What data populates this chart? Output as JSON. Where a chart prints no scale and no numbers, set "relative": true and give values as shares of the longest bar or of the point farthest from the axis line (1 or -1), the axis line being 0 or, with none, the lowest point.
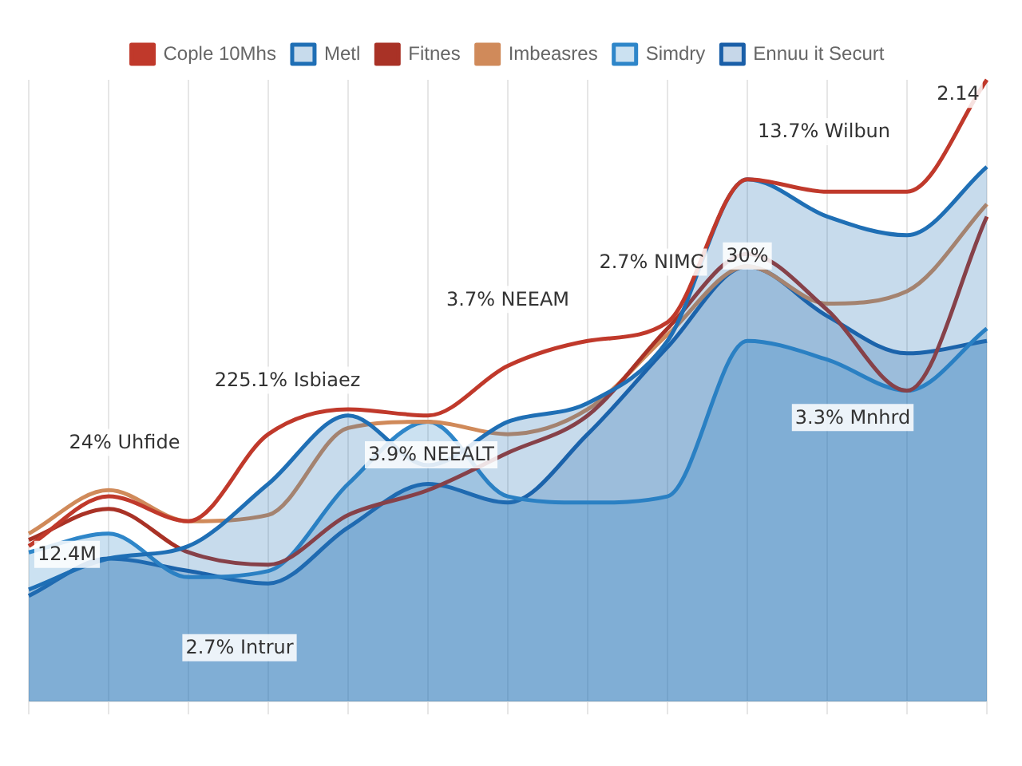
{
  "chart_data": {
    "type": "area",
    "relative": true,
    "grid": "x",
    "legend": "top",
    "marker": "none",
    "line_style": "solid",
    "categories": [
      null,
      null,
      null,
      null,
      null,
      null,
      null,
      null,
      null,
      null,
      null,
      null,
      null
    ],
    "annotations": [
      "225.1% Isbiaez",
      "3.7% NEEAM",
      "2.7% NIMC",
      "13.7% Wilbun",
      "2.14",
      "12.4M",
      "30%",
      "3.3% Mnhrd",
      "24% Uhfide",
      "3.9% NEEALT",
      "2.7% Intrur"
    ],
    "series": [
      {
        "name": "Cople 10Mhs",
        "color": "#c0392b",
        "type": "line",
        "values": [
          0.25,
          0.33,
          0.29,
          0.43,
          0.47,
          0.46,
          0.54,
          0.58,
          0.61,
          0.84,
          0.82,
          0.82,
          1
        ]
      },
      {
        "name": "Metl",
        "color": "#1f6fb5",
        "type": "area",
        "values": [
          0.18,
          0.23,
          0.25,
          0.35,
          0.46,
          0.38,
          0.45,
          0.48,
          0.58,
          0.84,
          0.78,
          0.75,
          0.86
        ]
      },
      {
        "name": "Fitnes",
        "color": "#a93226",
        "type": "line",
        "values": [
          0.26,
          0.31,
          0.24,
          0.22,
          0.3,
          0.34,
          0.4,
          0.46,
          0.6,
          0.72,
          0.63,
          0.5,
          0.78
        ]
      },
      {
        "name": "Imbeasres",
        "color": "#d08a5a",
        "type": "line",
        "values": [
          0.27,
          0.34,
          0.29,
          0.3,
          0.44,
          0.45,
          0.43,
          0.47,
          0.59,
          0.7,
          0.64,
          0.66,
          0.8
        ]
      },
      {
        "name": "Simdry",
        "color": "#2e86c9",
        "type": "area",
        "values": [
          0.24,
          0.27,
          0.2,
          0.21,
          0.35,
          0.45,
          0.33,
          0.32,
          0.33,
          0.58,
          0.55,
          0.5,
          0.6
        ]
      },
      {
        "name": "Ennuu it Securt",
        "color": "#1a5fa8",
        "type": "area",
        "values": [
          0.17,
          0.23,
          0.21,
          0.19,
          0.28,
          0.35,
          0.32,
          0.43,
          0.57,
          0.7,
          0.62,
          0.56,
          0.58
        ]
      }
    ]
  }
}
